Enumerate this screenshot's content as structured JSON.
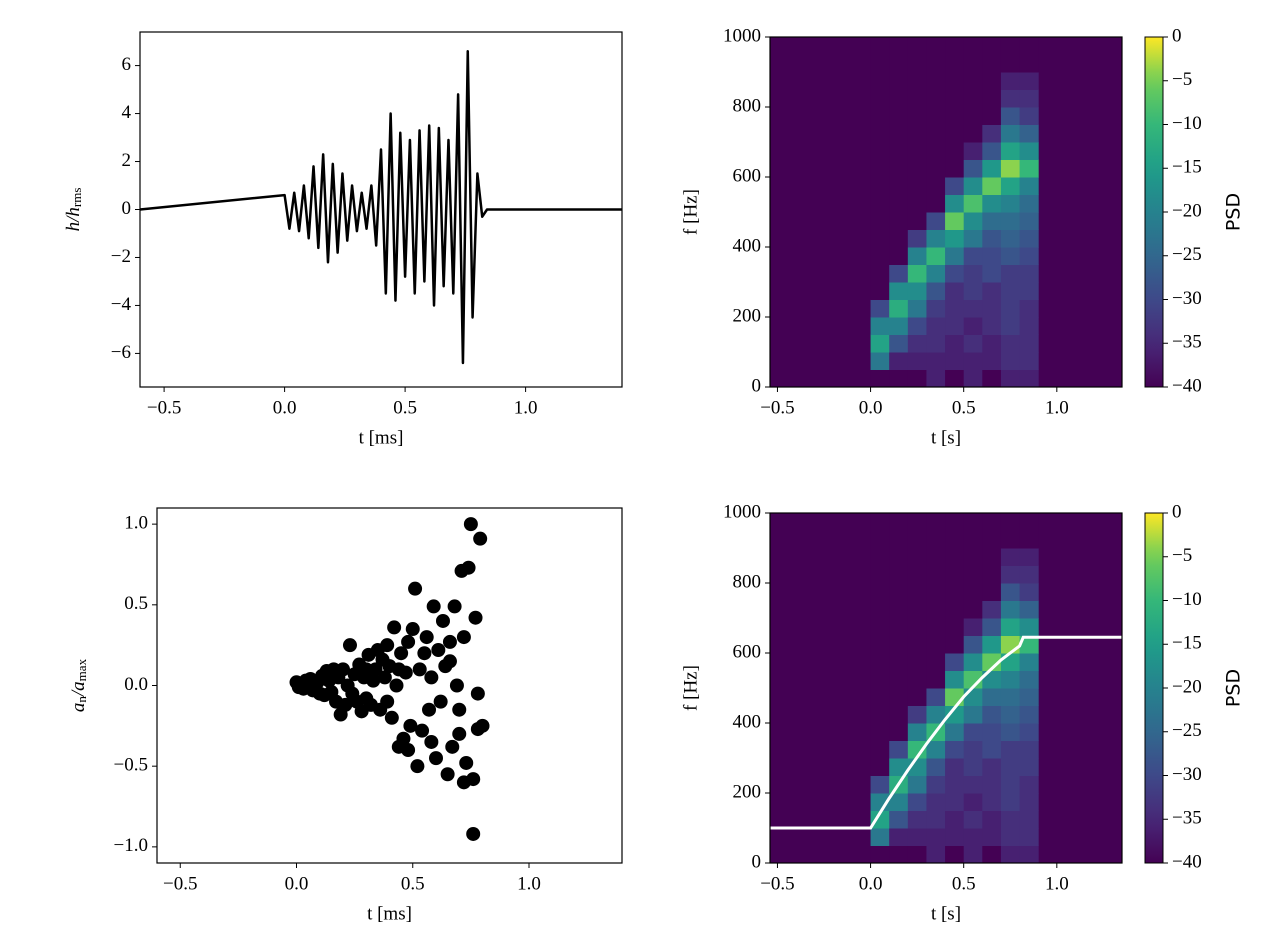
{
  "chart_data": [
    {
      "type": "line",
      "xlabel": "t [ms]",
      "ylabel": [
        "h/h",
        "rms"
      ],
      "color": "#000000",
      "xlim": [
        -0.6,
        1.4
      ],
      "ylim": [
        -7.4,
        7.4
      ],
      "xticks": [
        {
          "value": -0.5,
          "label": "−0.5"
        },
        {
          "value": 0,
          "label": "0.0"
        },
        0.5,
        {
          "value": 1,
          "label": "1.0"
        }
      ],
      "yticks": [
        {
          "value": -6,
          "label": "−6"
        },
        {
          "value": -4,
          "label": "−4"
        },
        {
          "value": -2,
          "label": "−2"
        },
        0,
        2,
        4,
        6
      ],
      "x": [
        -0.6,
        0,
        0.02,
        0.04,
        0.06,
        0.08,
        0.1,
        0.12,
        0.14,
        0.16,
        0.18,
        0.2,
        0.22,
        0.24,
        0.26,
        0.28,
        0.3,
        0.32,
        0.34,
        0.36,
        0.38,
        0.4,
        0.42,
        0.44,
        0.46,
        0.48,
        0.5,
        0.52,
        0.54,
        0.56,
        0.58,
        0.6,
        0.62,
        0.64,
        0.66,
        0.68,
        0.7,
        0.72,
        0.74,
        0.76,
        0.78,
        0.8,
        0.82,
        0.84,
        1.4
      ],
      "values": [
        0,
        0.6,
        -0.8,
        0.7,
        -0.9,
        1.0,
        -1.2,
        1.8,
        -1.6,
        2.3,
        -2.2,
        1.9,
        -1.8,
        1.5,
        -1.3,
        1.0,
        -0.9,
        0.7,
        -0.8,
        1.0,
        -1.5,
        2.5,
        -3.5,
        4.0,
        -3.8,
        3.2,
        -2.8,
        2.9,
        -3.5,
        3.3,
        -3.0,
        3.5,
        -4.0,
        3.4,
        -3.2,
        2.9,
        -3.5,
        4.8,
        -6.4,
        6.6,
        -4.5,
        1.5,
        -0.3,
        0,
        0
      ]
    },
    {
      "type": "scatter",
      "xlabel": "t [ms]",
      "ylabel": [
        "a",
        "n",
        "/a",
        "max"
      ],
      "color": "#000000",
      "xlim": [
        -0.6,
        1.4
      ],
      "ylim": [
        -1.1,
        1.1
      ],
      "xticks": [
        {
          "value": -0.5,
          "label": "−0.5"
        },
        {
          "value": 0,
          "label": "0.0"
        },
        0.5,
        {
          "value": 1,
          "label": "1.0"
        }
      ],
      "yticks": [
        {
          "value": -1,
          "label": "−1.0"
        },
        {
          "value": -0.5,
          "label": "−0.5"
        },
        {
          "value": 0,
          "label": "0.0"
        },
        0.5,
        {
          "value": 1,
          "label": "1.0"
        }
      ],
      "x": [
        0.0,
        0.01,
        0.02,
        0.03,
        0.04,
        0.05,
        0.06,
        0.07,
        0.09,
        0.1,
        0.11,
        0.12,
        0.13,
        0.14,
        0.15,
        0.16,
        0.17,
        0.18,
        0.19,
        0.2,
        0.21,
        0.22,
        0.23,
        0.24,
        0.25,
        0.26,
        0.27,
        0.28,
        0.29,
        0.3,
        0.31,
        0.32,
        0.33,
        0.34,
        0.35,
        0.36,
        0.37,
        0.38,
        0.39,
        0.4,
        0.41,
        0.42,
        0.43,
        0.44,
        0.45,
        0.46,
        0.47,
        0.48,
        0.49,
        0.5,
        0.51,
        0.52,
        0.53,
        0.54,
        0.55,
        0.56,
        0.57,
        0.58,
        0.59,
        0.6,
        0.61,
        0.62,
        0.63,
        0.64,
        0.65,
        0.66,
        0.67,
        0.68,
        0.69,
        0.7,
        0.71,
        0.72,
        0.73,
        0.74,
        0.75,
        0.76,
        0.77,
        0.78,
        0.79,
        0.8,
        0.76,
        0.72,
        0.78,
        0.7,
        0.66,
        0.58,
        0.48,
        0.39,
        0.44,
        0.3
      ],
      "values": [
        0.02,
        -0.01,
        0.0,
        -0.02,
        0.03,
        0.0,
        0.04,
        -0.03,
        0.02,
        -0.05,
        0.06,
        -0.06,
        0.09,
        0.03,
        -0.04,
        0.1,
        -0.1,
        0.05,
        -0.18,
        0.1,
        -0.12,
        0.0,
        0.25,
        -0.05,
        0.07,
        -0.1,
        0.13,
        -0.16,
        0.05,
        -0.08,
        0.19,
        -0.12,
        0.03,
        0.1,
        0.22,
        -0.15,
        0.16,
        0.05,
        -0.1,
        0.12,
        -0.2,
        0.36,
        0.0,
        -0.38,
        0.2,
        -0.33,
        0.08,
        0.27,
        -0.25,
        0.35,
        0.6,
        -0.5,
        0.1,
        -0.28,
        0.2,
        0.3,
        -0.15,
        0.05,
        0.49,
        -0.45,
        0.22,
        -0.1,
        0.4,
        0.12,
        -0.55,
        0.27,
        -0.38,
        0.49,
        0.0,
        -0.3,
        0.71,
        0.3,
        -0.48,
        0.73,
        1.0,
        -0.92,
        0.42,
        -0.05,
        0.91,
        -0.25,
        -0.58,
        -0.6,
        -0.27,
        -0.15,
        0.15,
        -0.35,
        -0.4,
        0.25,
        0.1,
        0.1
      ]
    },
    {
      "type": "heatmap",
      "xlabel": "t [s]",
      "ylabel": "f [Hz]",
      "colormap": "viridis",
      "xlim": [
        -0.54,
        1.35
      ],
      "ylim": [
        0,
        1000
      ],
      "xticks": [
        {
          "value": -0.5,
          "label": "−0.5"
        },
        {
          "value": 0,
          "label": "0.0"
        },
        0.5,
        {
          "value": 1,
          "label": "1.0"
        }
      ],
      "yticks": [
        0,
        200,
        400,
        600,
        800,
        1000
      ],
      "clim": [
        -40,
        0
      ],
      "clabel": "PSD",
      "cticks": [
        {
          "value": -40,
          "label": "−40"
        },
        {
          "value": -35,
          "label": "−35"
        },
        {
          "value": -30,
          "label": "−30"
        },
        {
          "value": -25,
          "label": "−25"
        },
        {
          "value": -20,
          "label": "−20"
        },
        {
          "value": -15,
          "label": "−15"
        },
        {
          "value": -10,
          "label": "−10"
        },
        {
          "value": -5,
          "label": "−5"
        },
        0
      ],
      "x_edges": [
        0,
        0.1,
        0.2,
        0.3,
        0.4,
        0.5,
        0.6,
        0.7,
        0.8,
        0.9
      ],
      "y_edges": [
        0,
        50,
        100,
        150,
        200,
        250,
        300,
        350,
        400,
        450,
        500,
        550,
        600,
        650,
        700,
        750,
        800,
        850,
        900,
        950,
        1000
      ],
      "z": [
        [
          -40,
          -40,
          -40,
          -36,
          -40,
          -36,
          -40,
          -36,
          -36
        ],
        [
          -22,
          -36,
          -36,
          -36,
          -36,
          -36,
          -36,
          -34,
          -34
        ],
        [
          -14,
          -28,
          -34,
          -34,
          -36,
          -34,
          -36,
          -34,
          -34
        ],
        [
          -20,
          -20,
          -30,
          -34,
          -34,
          -36,
          -34,
          -32,
          -34
        ],
        [
          -30,
          -12,
          -22,
          -32,
          -34,
          -34,
          -34,
          -32,
          -34
        ],
        [
          -40,
          -18,
          -18,
          -28,
          -34,
          -32,
          -34,
          -32,
          -32
        ],
        [
          -40,
          -30,
          -10,
          -20,
          -30,
          -32,
          -30,
          -32,
          -32
        ],
        [
          -40,
          -40,
          -20,
          -10,
          -22,
          -30,
          -30,
          -28,
          -30
        ],
        [
          -40,
          -40,
          -32,
          -20,
          -16,
          -22,
          -28,
          -26,
          -28
        ],
        [
          -40,
          -40,
          -40,
          -30,
          -6,
          -18,
          -24,
          -24,
          -26
        ],
        [
          -40,
          -40,
          -40,
          -40,
          -18,
          -8,
          -18,
          -20,
          -24
        ],
        [
          -40,
          -40,
          -40,
          -40,
          -30,
          -18,
          -6,
          -14,
          -20
        ],
        [
          -40,
          -40,
          -40,
          -40,
          -40,
          -28,
          -16,
          -4,
          -10
        ],
        [
          -40,
          -40,
          -40,
          -40,
          -40,
          -36,
          -28,
          -14,
          -18
        ],
        [
          -40,
          -40,
          -40,
          -40,
          -40,
          -40,
          -34,
          -22,
          -26
        ],
        [
          -40,
          -40,
          -40,
          -40,
          -40,
          -40,
          -40,
          -28,
          -32
        ],
        [
          -40,
          -40,
          -40,
          -40,
          -40,
          -40,
          -40,
          -34,
          -34
        ],
        [
          -40,
          -40,
          -40,
          -40,
          -40,
          -40,
          -40,
          -36,
          -36
        ],
        [
          -40,
          -40,
          -40,
          -40,
          -40,
          -40,
          -40,
          -40,
          -40
        ],
        [
          -40,
          -40,
          -40,
          -40,
          -40,
          -40,
          -40,
          -40,
          -40
        ]
      ]
    },
    {
      "type": "heatmap",
      "xlabel": "t [s]",
      "ylabel": "f [Hz]",
      "colormap": "viridis",
      "xlim": [
        -0.54,
        1.35
      ],
      "ylim": [
        0,
        1000
      ],
      "xticks": [
        {
          "value": -0.5,
          "label": "−0.5"
        },
        {
          "value": 0,
          "label": "0.0"
        },
        0.5,
        {
          "value": 1,
          "label": "1.0"
        }
      ],
      "yticks": [
        0,
        200,
        400,
        600,
        800,
        1000
      ],
      "clim": [
        -40,
        0
      ],
      "clabel": "PSD",
      "cticks": [
        {
          "value": -40,
          "label": "−40"
        },
        {
          "value": -35,
          "label": "−35"
        },
        {
          "value": -30,
          "label": "−30"
        },
        {
          "value": -25,
          "label": "−25"
        },
        {
          "value": -20,
          "label": "−20"
        },
        {
          "value": -15,
          "label": "−15"
        },
        {
          "value": -10,
          "label": "−10"
        },
        {
          "value": -5,
          "label": "−5"
        },
        0
      ],
      "x_edges": [
        0,
        0.1,
        0.2,
        0.3,
        0.4,
        0.5,
        0.6,
        0.7,
        0.8,
        0.9
      ],
      "y_edges": [
        0,
        50,
        100,
        150,
        200,
        250,
        300,
        350,
        400,
        450,
        500,
        550,
        600,
        650,
        700,
        750,
        800,
        850,
        900,
        950,
        1000
      ],
      "z": [
        [
          -40,
          -40,
          -40,
          -36,
          -40,
          -36,
          -40,
          -36,
          -36
        ],
        [
          -22,
          -36,
          -36,
          -36,
          -36,
          -36,
          -36,
          -34,
          -34
        ],
        [
          -14,
          -28,
          -34,
          -34,
          -36,
          -34,
          -36,
          -34,
          -34
        ],
        [
          -20,
          -20,
          -30,
          -34,
          -34,
          -36,
          -34,
          -32,
          -34
        ],
        [
          -30,
          -12,
          -22,
          -32,
          -34,
          -34,
          -34,
          -32,
          -34
        ],
        [
          -40,
          -18,
          -18,
          -28,
          -34,
          -32,
          -34,
          -32,
          -32
        ],
        [
          -40,
          -30,
          -10,
          -20,
          -30,
          -32,
          -30,
          -32,
          -32
        ],
        [
          -40,
          -40,
          -20,
          -10,
          -22,
          -30,
          -30,
          -28,
          -30
        ],
        [
          -40,
          -40,
          -32,
          -20,
          -16,
          -22,
          -28,
          -26,
          -28
        ],
        [
          -40,
          -40,
          -40,
          -30,
          -6,
          -18,
          -24,
          -24,
          -26
        ],
        [
          -40,
          -40,
          -40,
          -40,
          -18,
          -8,
          -18,
          -20,
          -24
        ],
        [
          -40,
          -40,
          -40,
          -40,
          -30,
          -18,
          -6,
          -14,
          -20
        ],
        [
          -40,
          -40,
          -40,
          -40,
          -40,
          -28,
          -16,
          -4,
          -10
        ],
        [
          -40,
          -40,
          -40,
          -40,
          -40,
          -36,
          -28,
          -14,
          -18
        ],
        [
          -40,
          -40,
          -40,
          -40,
          -40,
          -40,
          -34,
          -22,
          -26
        ],
        [
          -40,
          -40,
          -40,
          -40,
          -40,
          -40,
          -40,
          -28,
          -32
        ],
        [
          -40,
          -40,
          -40,
          -40,
          -40,
          -40,
          -40,
          -34,
          -34
        ],
        [
          -40,
          -40,
          -40,
          -40,
          -40,
          -40,
          -40,
          -36,
          -36
        ],
        [
          -40,
          -40,
          -40,
          -40,
          -40,
          -40,
          -40,
          -40,
          -40
        ],
        [
          -40,
          -40,
          -40,
          -40,
          -40,
          -40,
          -40,
          -40,
          -40
        ]
      ],
      "series": [
        {
          "color": "#ffffff",
          "x": [
            -0.54,
            0,
            0.1,
            0.2,
            0.3,
            0.4,
            0.5,
            0.6,
            0.7,
            0.8,
            0.82,
            1.35
          ],
          "values": [
            100,
            100,
            185,
            265,
            340,
            410,
            475,
            530,
            580,
            620,
            645,
            645
          ]
        }
      ]
    }
  ]
}
